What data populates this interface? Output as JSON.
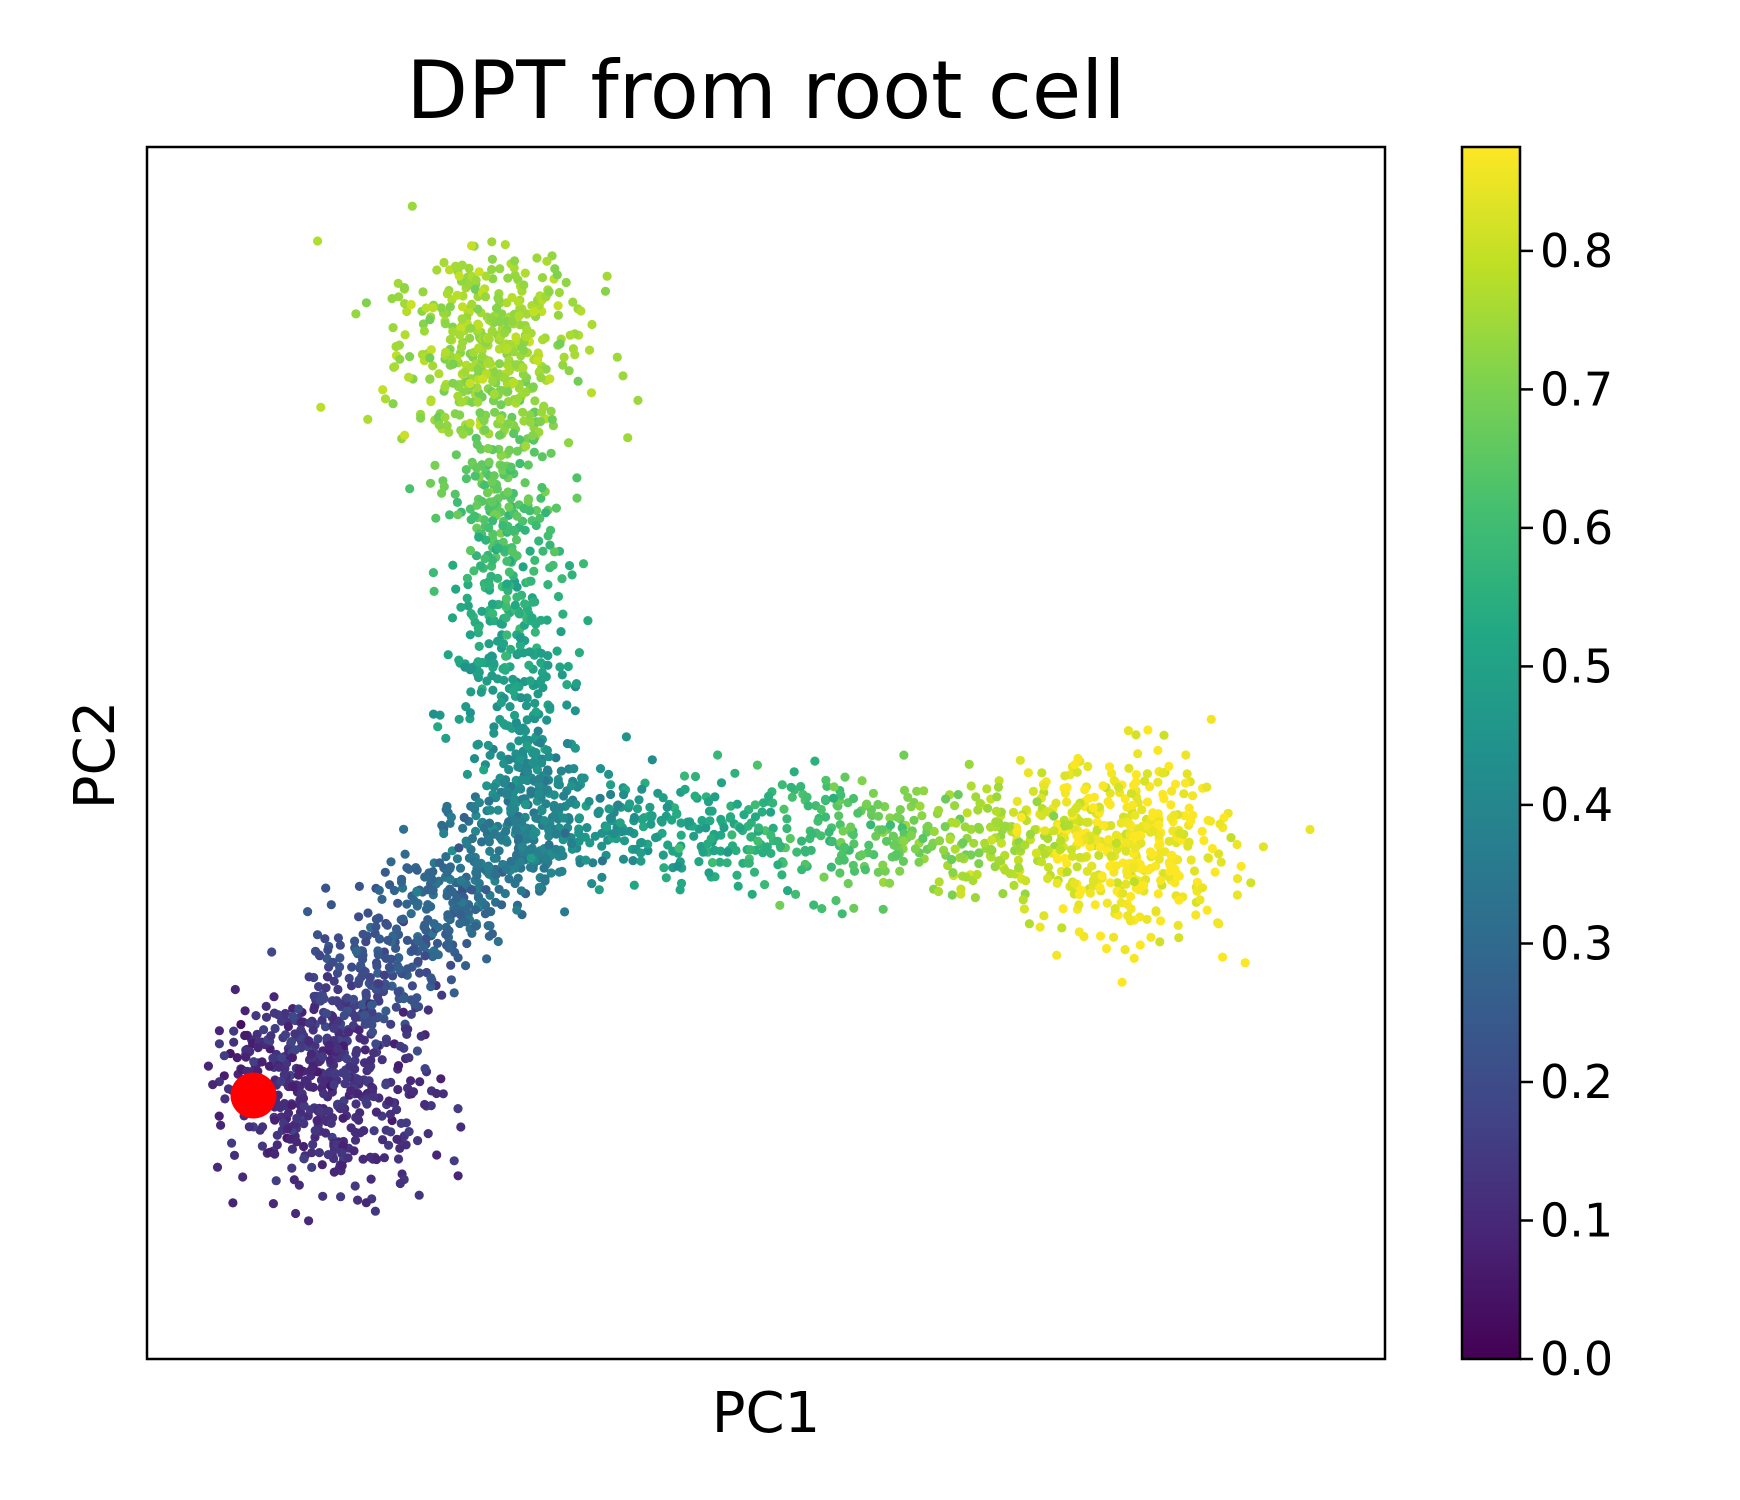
{
  "chart_data": {
    "type": "scatter",
    "title": "DPT from root cell",
    "xlabel": "PC1",
    "ylabel": "PC2",
    "x_ticks_shown": false,
    "y_ticks_shown": false,
    "grid": false,
    "legend": "none",
    "colormap": "viridis",
    "colorbar": {
      "label": "",
      "range": [
        0.0,
        0.875
      ],
      "ticks": [
        0.0,
        0.1,
        0.2,
        0.3,
        0.4,
        0.5,
        0.6,
        0.7,
        0.8
      ],
      "tick_labels": [
        "0.0",
        "0.1",
        "0.2",
        "0.3",
        "0.4",
        "0.5",
        "0.6",
        "0.7",
        "0.8"
      ]
    },
    "xlim": [
      -0.86,
      1.0
    ],
    "ylim": [
      -0.9,
      0.94
    ],
    "root_cell": {
      "x": -0.7,
      "y": -0.5,
      "dpt": 0.0,
      "color": "#ff0000"
    },
    "branches": [
      {
        "from": [
          -0.7,
          -0.5
        ],
        "to": [
          -0.29,
          -0.09
        ],
        "dpt_range": [
          0.08,
          0.38
        ]
      },
      {
        "from": [
          -0.29,
          -0.09
        ],
        "to": [
          -0.35,
          0.62
        ],
        "dpt_range": [
          0.38,
          0.75
        ]
      },
      {
        "from": [
          -0.29,
          -0.09
        ],
        "to": [
          0.6,
          -0.12
        ],
        "dpt_range": [
          0.38,
          0.86
        ]
      }
    ],
    "clusters": [
      {
        "name": "",
        "x": -0.57,
        "y": -0.5,
        "dpt": 0.12
      },
      {
        "name": "",
        "x": -0.35,
        "y": 0.65,
        "dpt": 0.75
      },
      {
        "name": "",
        "x": 0.62,
        "y": -0.12,
        "dpt": 0.86
      }
    ],
    "n_points": 3000
  }
}
